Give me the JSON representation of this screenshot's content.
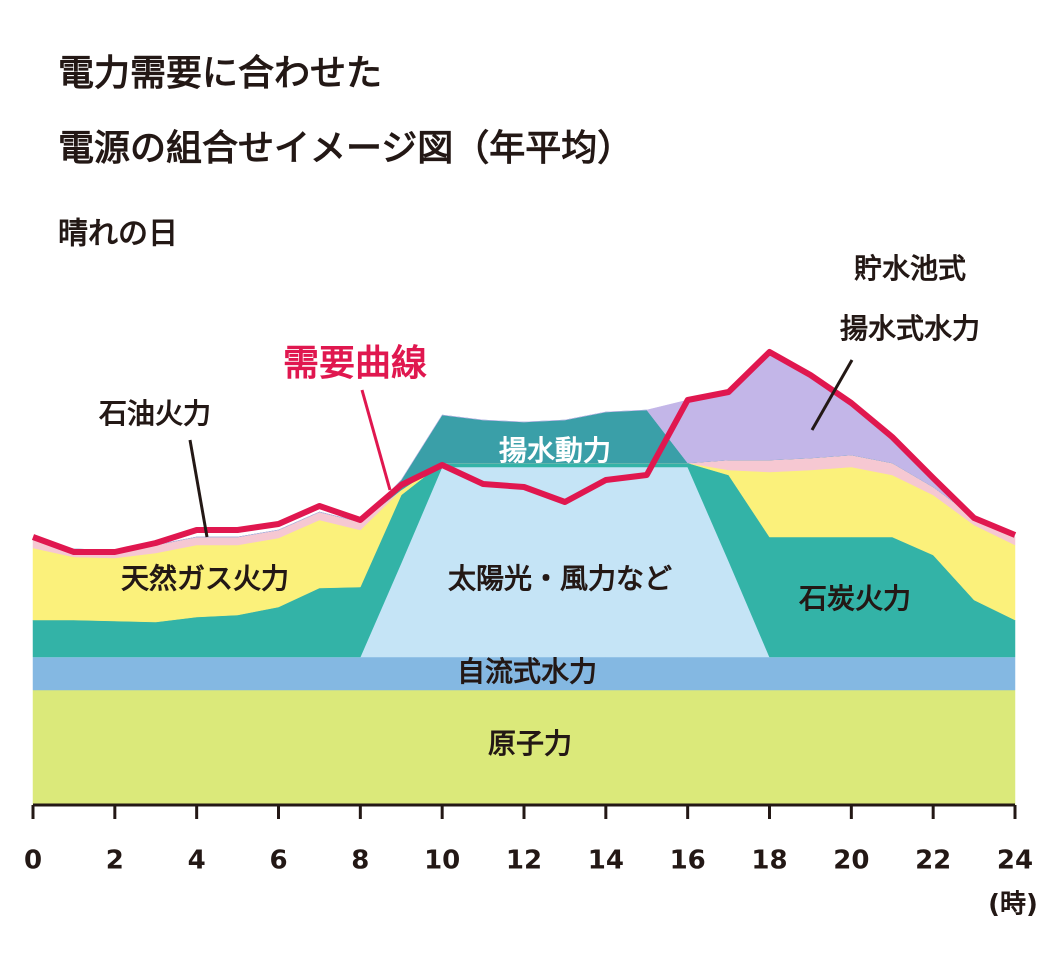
{
  "chart_data": {
    "type": "stacked-area",
    "title": [
      "電力需要に合わせた",
      "電源の組合せイメージ図（年平均）"
    ],
    "subtitle": "晴れの日",
    "x_label": "(時)",
    "xlim": [
      0,
      24
    ],
    "xticks": [
      0,
      2,
      4,
      6,
      8,
      10,
      12,
      14,
      16,
      18,
      20,
      22,
      24
    ],
    "ylim": [
      0,
      110
    ],
    "x": [
      0,
      1,
      2,
      3,
      4,
      5,
      6,
      7,
      8,
      9,
      10,
      11,
      12,
      13,
      14,
      15,
      16,
      17,
      18,
      19,
      20,
      21,
      22,
      23,
      24
    ],
    "series": [
      {
        "name": "原子力",
        "type": "area",
        "color": "#dbe97a",
        "values": [
          23,
          23,
          23,
          23,
          23,
          23,
          23,
          23,
          23,
          23,
          23,
          23,
          23,
          23,
          23,
          23,
          23,
          23,
          23,
          23,
          23,
          23,
          23,
          23,
          23
        ]
      },
      {
        "name": "自流式水力",
        "type": "area",
        "color": "#84b8e2",
        "values": [
          6.6,
          6.6,
          6.6,
          6.6,
          6.6,
          6.6,
          6.6,
          6.6,
          6.6,
          6.6,
          6.6,
          6.6,
          6.6,
          6.6,
          6.6,
          6.6,
          6.6,
          6.6,
          6.6,
          6.6,
          6.6,
          6.6,
          6.6,
          6.6,
          6.6
        ]
      },
      {
        "name": "太陽光・風力など",
        "type": "area",
        "color": "#c5e4f6",
        "values": [
          0,
          0,
          0,
          0,
          0,
          0,
          0,
          0,
          0,
          18.8,
          38,
          38,
          38,
          38,
          38,
          38,
          38,
          19.2,
          0,
          0,
          0,
          0,
          0,
          0,
          0
        ]
      },
      {
        "name": "石炭火力",
        "type": "area",
        "color": "#33b3a7",
        "values": [
          7.4,
          7.4,
          7.2,
          7,
          8,
          8.4,
          10,
          13.8,
          14,
          13.6,
          0.8,
          0.8,
          0.8,
          0.8,
          0.8,
          0.8,
          0.8,
          17.2,
          24,
          24,
          24,
          24,
          20.4,
          11.4,
          7.4
        ]
      },
      {
        "name": "天然ガス火力",
        "type": "area",
        "color": "#fbf17b",
        "values": [
          14.4,
          12.6,
          12.6,
          13.8,
          14.4,
          14,
          13.8,
          13.6,
          11.4,
          1,
          0,
          0,
          0,
          0,
          0,
          0,
          0,
          1,
          13,
          13.4,
          14,
          12.4,
          12,
          15,
          15
        ]
      },
      {
        "name": "石油火力",
        "type": "area",
        "color": "#f6c8d2",
        "values": [
          1.6,
          1.6,
          1.6,
          1.6,
          1.6,
          1.6,
          1.6,
          1.6,
          1.6,
          0,
          0,
          0,
          0,
          0,
          0,
          0,
          0,
          2,
          2.4,
          2.4,
          2.4,
          2.4,
          1.6,
          1.6,
          1.6
        ]
      },
      {
        "name": "揚水動力",
        "type": "area",
        "color": "#3a9fa8",
        "values": [
          0,
          0,
          0,
          0,
          0,
          0,
          0,
          0,
          0,
          2,
          9.6,
          8.6,
          8.2,
          8.6,
          10.2,
          10.6,
          0,
          0,
          0,
          0,
          0,
          0,
          0,
          0,
          0
        ]
      },
      {
        "name": [
          "貯水池式",
          "揚水式水力"
        ],
        "type": "area",
        "color": "#c3b6e8",
        "values": [
          0,
          0,
          0,
          0,
          0,
          0,
          0,
          0,
          0,
          0,
          0,
          0,
          0,
          0,
          0,
          0,
          12.6,
          13.6,
          21.6,
          16,
          10.4,
          5.4,
          1,
          0,
          0
        ]
      },
      {
        "name": "需要曲線",
        "type": "line",
        "color": "#e0174f",
        "values": [
          53.6,
          50.6,
          50.6,
          52.4,
          55,
          55,
          56.2,
          59.8,
          57,
          64,
          68,
          64.2,
          63.6,
          60.6,
          65,
          66,
          81,
          82.6,
          90.6,
          86,
          80.4,
          73.6,
          65.4,
          57.4,
          54
        ]
      }
    ]
  }
}
